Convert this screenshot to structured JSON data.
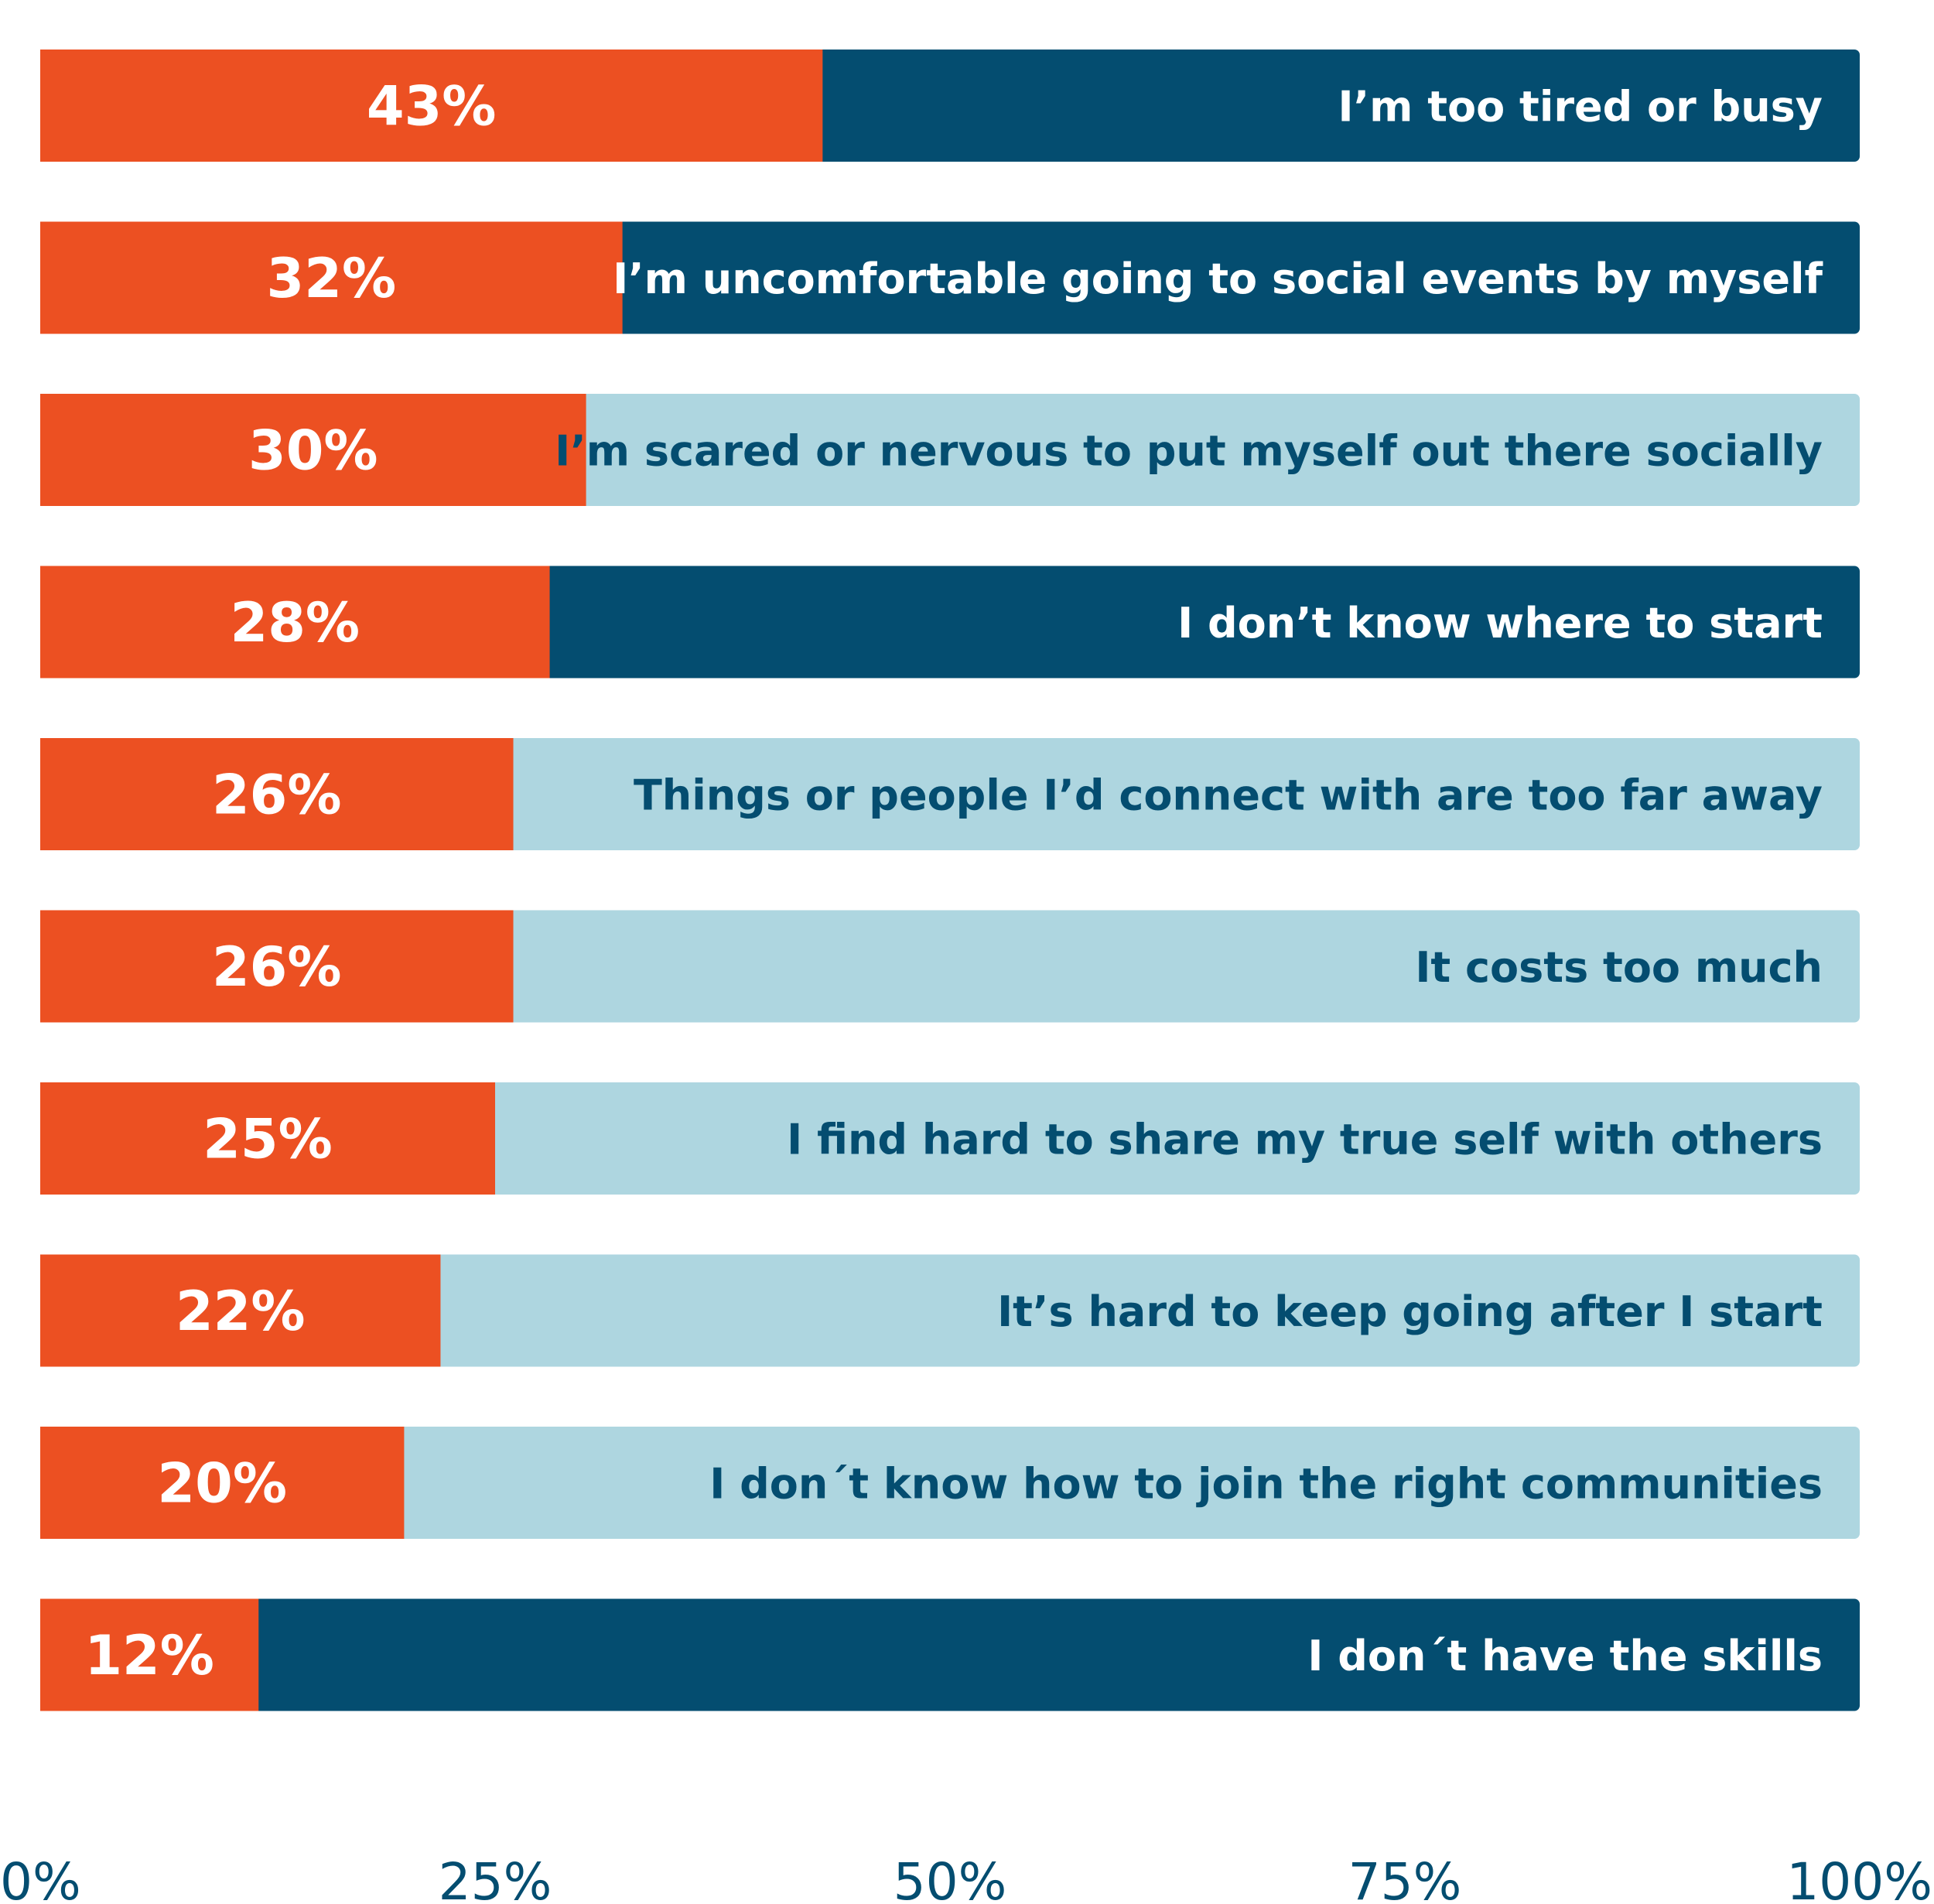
{
  "chart_data": {
    "type": "bar",
    "orientation": "horizontal",
    "stacked_to_100": true,
    "categories": [
      "I’m too tired or busy",
      "I’m uncomfortable going to social events by myself",
      "I’m scared or nervous to put myself out there socially",
      "I don’t know where to start",
      "Things or people I’d connect with are too far away",
      "It costs too much",
      "I find hard to share my true self with others",
      "It’s hard to keep going after I start",
      "I don´t know how to join the right communities",
      "I don´t have the skills"
    ],
    "values": [
      43,
      32,
      30,
      28,
      26,
      26,
      25,
      22,
      20,
      12
    ],
    "value_labels": [
      "43%",
      "32%",
      "30%",
      "28%",
      "26%",
      "26%",
      "25%",
      "22%",
      "20%",
      "12%"
    ],
    "remainder_style": [
      "dark",
      "dark",
      "light",
      "dark",
      "light",
      "light",
      "light",
      "light",
      "light",
      "dark"
    ],
    "xlim": [
      0,
      100
    ],
    "x_ticks": [
      0,
      25,
      50,
      75,
      100
    ],
    "x_tick_labels": [
      "0%",
      "25%",
      "50%",
      "75%",
      "100%"
    ],
    "title": "",
    "xlabel": "",
    "ylabel": "",
    "grid": false,
    "legend": "none"
  },
  "colors": {
    "value_bar": "#EC5022",
    "remainder_dark": "#044D70",
    "remainder_light": "#AED6E0",
    "text_on_dark": "#FFFFFF",
    "text_on_light": "#044D70",
    "axis_text": "#044D70",
    "background": "#FFFFFF"
  }
}
